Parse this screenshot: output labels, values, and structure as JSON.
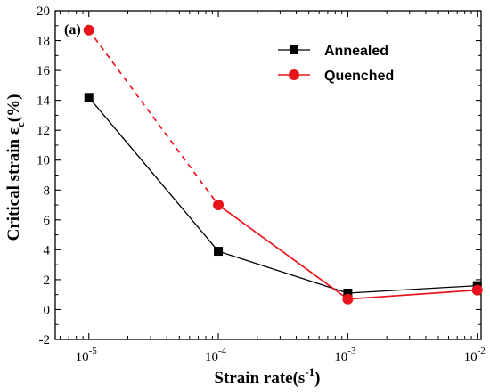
{
  "chart_data": {
    "type": "line",
    "panel_label": "(a)",
    "xlabel_main": "Strain rate(s",
    "xlabel_sup": "-1",
    "xlabel_close": ")",
    "ylabel_main": "Critical strain ε",
    "ylabel_sub": "c",
    "ylabel_unit": "(%)",
    "x_scale": "log",
    "x_tick_values": [
      1e-05,
      0.0001,
      0.001,
      0.01
    ],
    "x_tick_base": "10",
    "x_tick_exponents": [
      "-5",
      "-4",
      "-3",
      "-2"
    ],
    "y_ticks": [
      "-2",
      "0",
      "2",
      "4",
      "6",
      "8",
      "10",
      "12",
      "14",
      "16",
      "18",
      "20"
    ],
    "xlim": [
      5.5e-06,
      0.0107
    ],
    "ylim": [
      -2,
      20
    ],
    "grid": false,
    "legend_position": "top-right",
    "series": [
      {
        "name": "Annealed",
        "color": "#000000",
        "marker": "square",
        "x": [
          1e-05,
          0.0001,
          0.001,
          0.01
        ],
        "y": [
          14.2,
          3.9,
          1.1,
          1.6
        ],
        "line_styles": [
          "solid",
          "solid",
          "solid"
        ]
      },
      {
        "name": "Quenched",
        "color": "#e8141b",
        "marker": "circle",
        "x": [
          1e-05,
          0.0001,
          0.001,
          0.01
        ],
        "y": [
          18.7,
          7.0,
          0.7,
          1.3
        ],
        "line_styles": [
          "dashed",
          "solid",
          "solid"
        ]
      }
    ]
  }
}
